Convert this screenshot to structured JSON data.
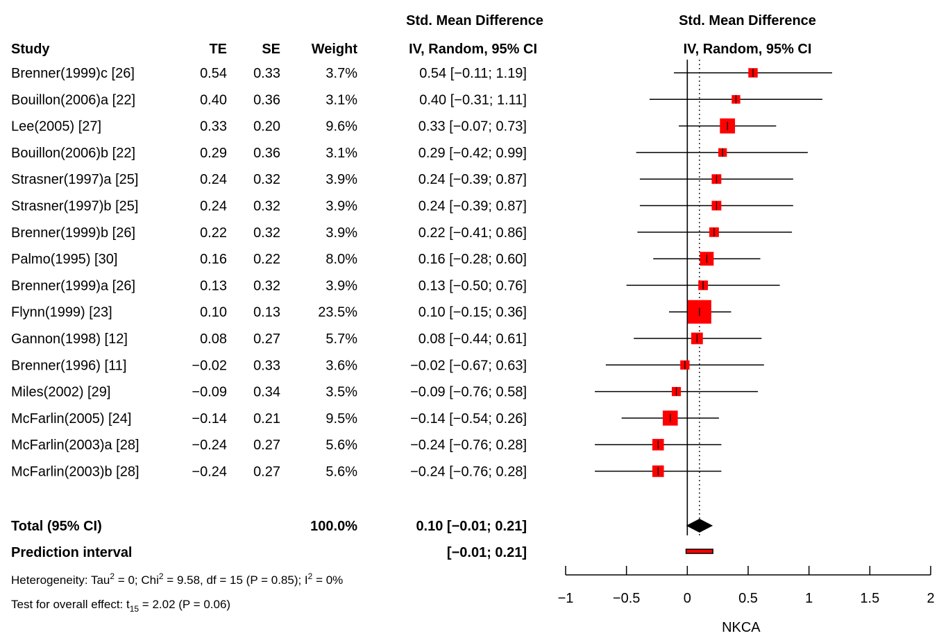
{
  "headers": {
    "study": "Study",
    "te": "TE",
    "se": "SE",
    "weight": "Weight",
    "smd_line1": "Std. Mean Difference",
    "smd_line2": "IV, Random, 95% CI",
    "plot_line1": "Std. Mean Difference",
    "plot_line2": "IV, Random, 95% CI"
  },
  "total": {
    "label": "Total (95% CI)",
    "weight": "100.0%",
    "ci_text": "0.10 [−0.01; 0.21]"
  },
  "prediction": {
    "label": "Prediction interval",
    "ci_text": "[−0.01; 0.21]"
  },
  "heterogeneity": {
    "p1": "Heterogeneity: Tau",
    "s1": "2",
    "p2": " = 0; Chi",
    "s2": "2",
    "p3": " = 9.58, df = 15 (P = 0.85); I",
    "s3": "2",
    "p4": " = 0%"
  },
  "overall": {
    "p1": "Test for overall effect: t",
    "sub": "15",
    "p2": " = 2.02 (P = 0.06)"
  },
  "colors": {
    "square": "#ff0000",
    "diamond": "#000000",
    "prediction_bar": "#ff0000"
  },
  "chart_data": {
    "type": "forest",
    "xlabel": "NKCA",
    "xlim": [
      -1,
      2
    ],
    "xticks": [
      -1,
      -0.5,
      0,
      0.5,
      1,
      1.5,
      2
    ],
    "xtick_labels": [
      "−1",
      "−0.5",
      "0",
      "0.5",
      "1",
      "1.5",
      "2"
    ],
    "pooled_estimate": 0.1,
    "pooled_ci": [
      -0.01,
      0.21
    ],
    "prediction_interval": [
      -0.01,
      0.21
    ],
    "studies": [
      {
        "study": "Brenner(1999)c [26]",
        "te": "0.54",
        "se": "0.33",
        "weight": "3.7%",
        "ci_text": "0.54 [−0.11; 1.19]",
        "est": 0.54,
        "lo": -0.11,
        "hi": 1.19,
        "w": 3.7
      },
      {
        "study": "Bouillon(2006)a [22]",
        "te": "0.40",
        "se": "0.36",
        "weight": "3.1%",
        "ci_text": "0.40 [−0.31; 1.11]",
        "est": 0.4,
        "lo": -0.31,
        "hi": 1.11,
        "w": 3.1
      },
      {
        "study": "Lee(2005) [27]",
        "te": "0.33",
        "se": "0.20",
        "weight": "9.6%",
        "ci_text": "0.33 [−0.07; 0.73]",
        "est": 0.33,
        "lo": -0.07,
        "hi": 0.73,
        "w": 9.6
      },
      {
        "study": "Bouillon(2006)b [22]",
        "te": "0.29",
        "se": "0.36",
        "weight": "3.1%",
        "ci_text": "0.29 [−0.42; 0.99]",
        "est": 0.29,
        "lo": -0.42,
        "hi": 0.99,
        "w": 3.1
      },
      {
        "study": "Strasner(1997)a [25]",
        "te": "0.24",
        "se": "0.32",
        "weight": "3.9%",
        "ci_text": "0.24 [−0.39; 0.87]",
        "est": 0.24,
        "lo": -0.39,
        "hi": 0.87,
        "w": 3.9
      },
      {
        "study": "Strasner(1997)b [25]",
        "te": "0.24",
        "se": "0.32",
        "weight": "3.9%",
        "ci_text": "0.24 [−0.39; 0.87]",
        "est": 0.24,
        "lo": -0.39,
        "hi": 0.87,
        "w": 3.9
      },
      {
        "study": "Brenner(1999)b [26]",
        "te": "0.22",
        "se": "0.32",
        "weight": "3.9%",
        "ci_text": "0.22 [−0.41; 0.86]",
        "est": 0.22,
        "lo": -0.41,
        "hi": 0.86,
        "w": 3.9
      },
      {
        "study": "Palmo(1995) [30]",
        "te": "0.16",
        "se": "0.22",
        "weight": "8.0%",
        "ci_text": "0.16 [−0.28; 0.60]",
        "est": 0.16,
        "lo": -0.28,
        "hi": 0.6,
        "w": 8.0
      },
      {
        "study": "Brenner(1999)a [26]",
        "te": "0.13",
        "se": "0.32",
        "weight": "3.9%",
        "ci_text": "0.13 [−0.50; 0.76]",
        "est": 0.13,
        "lo": -0.5,
        "hi": 0.76,
        "w": 3.9
      },
      {
        "study": "Flynn(1999) [23]",
        "te": "0.10",
        "se": "0.13",
        "weight": "23.5%",
        "ci_text": "0.10 [−0.15; 0.36]",
        "est": 0.1,
        "lo": -0.15,
        "hi": 0.36,
        "w": 23.5
      },
      {
        "study": "Gannon(1998) [12]",
        "te": "0.08",
        "se": "0.27",
        "weight": "5.7%",
        "ci_text": "0.08 [−0.44; 0.61]",
        "est": 0.08,
        "lo": -0.44,
        "hi": 0.61,
        "w": 5.7
      },
      {
        "study": "Brenner(1996) [11]",
        "te": "−0.02",
        "se": "0.33",
        "weight": "3.6%",
        "ci_text": "−0.02 [−0.67; 0.63]",
        "est": -0.02,
        "lo": -0.67,
        "hi": 0.63,
        "w": 3.6
      },
      {
        "study": "Miles(2002) [29]",
        "te": "−0.09",
        "se": "0.34",
        "weight": "3.5%",
        "ci_text": "−0.09 [−0.76; 0.58]",
        "est": -0.09,
        "lo": -0.76,
        "hi": 0.58,
        "w": 3.5
      },
      {
        "study": "McFarlin(2005) [24]",
        "te": "−0.14",
        "se": "0.21",
        "weight": "9.5%",
        "ci_text": "−0.14 [−0.54; 0.26]",
        "est": -0.14,
        "lo": -0.54,
        "hi": 0.26,
        "w": 9.5
      },
      {
        "study": "McFarlin(2003)a [28]",
        "te": "−0.24",
        "se": "0.27",
        "weight": "5.6%",
        "ci_text": "−0.24 [−0.76; 0.28]",
        "est": -0.24,
        "lo": -0.76,
        "hi": 0.28,
        "w": 5.6
      },
      {
        "study": "McFarlin(2003)b [28]",
        "te": "−0.24",
        "se": "0.27",
        "weight": "5.6%",
        "ci_text": "−0.24 [−0.76; 0.28]",
        "est": -0.24,
        "lo": -0.76,
        "hi": 0.28,
        "w": 5.6
      }
    ]
  }
}
